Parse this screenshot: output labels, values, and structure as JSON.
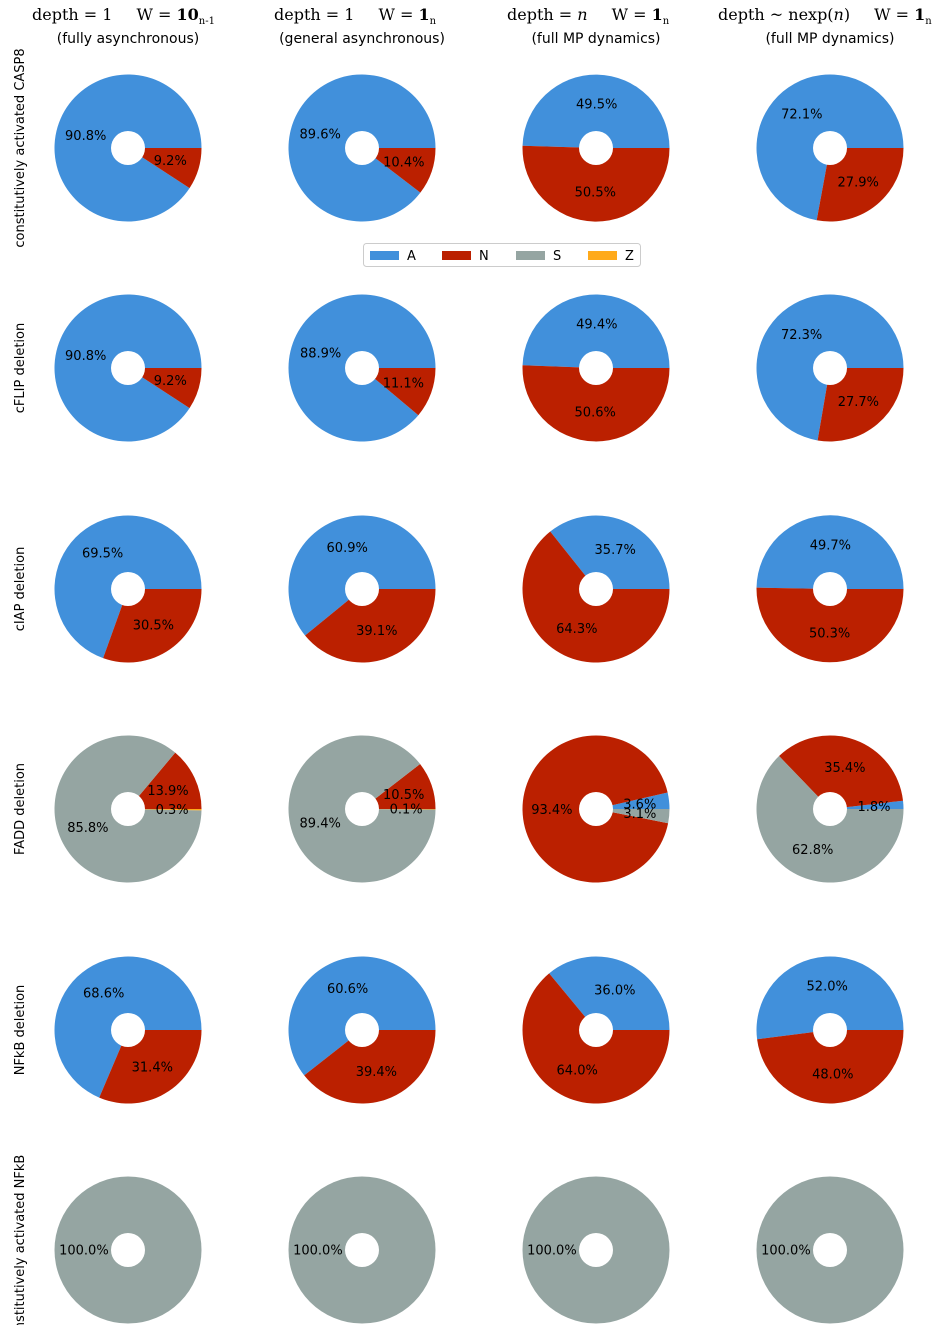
{
  "columns": [
    {
      "header_parts": [
        {
          "text": "depth = 1",
          "style": "normal"
        },
        {
          "text": "W = ",
          "style": "normal"
        },
        {
          "text": "10",
          "style": "bold"
        },
        {
          "text": "n-1",
          "style": "sub"
        }
      ],
      "subtitle": "(fully asynchronous)"
    },
    {
      "header_parts": [
        {
          "text": "depth = 1",
          "style": "normal"
        },
        {
          "text": "W = ",
          "style": "normal"
        },
        {
          "text": "1",
          "style": "bold"
        },
        {
          "text": "n",
          "style": "sub"
        }
      ],
      "subtitle": "(general asynchronous)"
    },
    {
      "header_parts": [
        {
          "text": "depth = ",
          "style": "normal"
        },
        {
          "text": "n",
          "style": "italic"
        },
        {
          "text": "W = ",
          "style": "normal"
        },
        {
          "text": "1",
          "style": "bold"
        },
        {
          "text": "n",
          "style": "sub"
        }
      ],
      "subtitle": "(full MP dynamics)"
    },
    {
      "header_parts": [
        {
          "text": "depth ~ nexp(",
          "style": "normal"
        },
        {
          "text": "n",
          "style": "italic"
        },
        {
          "text": ")",
          "style": "normal"
        },
        {
          "text": "W = ",
          "style": "normal"
        },
        {
          "text": "1",
          "style": "bold"
        },
        {
          "text": "n",
          "style": "sub"
        }
      ],
      "subtitle": "(full MP dynamics)"
    }
  ],
  "legend": [
    {
      "key": "A",
      "label": "A",
      "color": "#4190db"
    },
    {
      "key": "N",
      "label": "N",
      "color": "#bb2000"
    },
    {
      "key": "S",
      "label": "S",
      "color": "#95a5a2"
    },
    {
      "key": "Z",
      "label": "Z",
      "color": "#ffaa1b"
    }
  ],
  "chart_data": {
    "type": "pie",
    "style": "donut, counter-clockwise from 0 degrees, order A N S Z",
    "categories": [
      "A",
      "N",
      "S",
      "Z"
    ],
    "rows": [
      {
        "label": "constitutively activated CASP8",
        "pies": [
          {
            "values": {
              "A": 90.8,
              "N": 9.2,
              "S": 0,
              "Z": 0
            },
            "labels": {
              "A": "90.8%",
              "N": "9.2%"
            }
          },
          {
            "values": {
              "A": 89.6,
              "N": 10.4,
              "S": 0,
              "Z": 0
            },
            "labels": {
              "A": "89.6%",
              "N": "10.4%"
            }
          },
          {
            "values": {
              "A": 49.5,
              "N": 50.5,
              "S": 0,
              "Z": 0
            },
            "labels": {
              "A": "49.5%",
              "N": "50.5%"
            }
          },
          {
            "values": {
              "A": 72.1,
              "N": 27.9,
              "S": 0,
              "Z": 0
            },
            "labels": {
              "A": "72.1%",
              "N": "27.9%"
            }
          }
        ]
      },
      {
        "label": "cFLIP deletion",
        "pies": [
          {
            "values": {
              "A": 90.8,
              "N": 9.2,
              "S": 0,
              "Z": 0
            },
            "labels": {
              "A": "90.8%",
              "N": "9.2%"
            }
          },
          {
            "values": {
              "A": 88.9,
              "N": 11.1,
              "S": 0,
              "Z": 0
            },
            "labels": {
              "A": "88.9%",
              "N": "11.1%"
            }
          },
          {
            "values": {
              "A": 49.4,
              "N": 50.6,
              "S": 0,
              "Z": 0
            },
            "labels": {
              "A": "49.4%",
              "N": "50.6%"
            }
          },
          {
            "values": {
              "A": 72.3,
              "N": 27.7,
              "S": 0,
              "Z": 0
            },
            "labels": {
              "A": "72.3%",
              "N": "27.7%"
            }
          }
        ]
      },
      {
        "label": "cIAP deletion",
        "pies": [
          {
            "values": {
              "A": 69.5,
              "N": 30.5,
              "S": 0,
              "Z": 0
            },
            "labels": {
              "A": "69.5%",
              "N": "30.5%"
            }
          },
          {
            "values": {
              "A": 60.9,
              "N": 39.1,
              "S": 0,
              "Z": 0
            },
            "labels": {
              "A": "60.9%",
              "N": "39.1%"
            }
          },
          {
            "values": {
              "A": 35.7,
              "N": 64.3,
              "S": 0,
              "Z": 0
            },
            "labels": {
              "A": "35.7%",
              "N": "64.3%"
            }
          },
          {
            "values": {
              "A": 49.7,
              "N": 50.3,
              "S": 0,
              "Z": 0
            },
            "labels": {
              "A": "49.7%",
              "N": "50.3%"
            }
          }
        ]
      },
      {
        "label": "FADD deletion",
        "pies": [
          {
            "values": {
              "A": 0,
              "N": 13.9,
              "S": 85.8,
              "Z": 0.3
            },
            "labels": {
              "N": "13.9%",
              "S": "85.8%",
              "Z": "0.3%"
            }
          },
          {
            "values": {
              "A": 0,
              "N": 10.5,
              "S": 89.4,
              "Z": 0.1
            },
            "labels": {
              "N": "10.5%",
              "S": "89.4%",
              "Z": "0.1%"
            }
          },
          {
            "values": {
              "A": 3.6,
              "N": 93.4,
              "S": 3.1,
              "Z": 0
            },
            "labels": {
              "A": "3.6%",
              "N": "93.4%",
              "S": "3.1%"
            }
          },
          {
            "values": {
              "A": 1.8,
              "N": 35.4,
              "S": 62.8,
              "Z": 0
            },
            "labels": {
              "A": "1.8%",
              "N": "35.4%",
              "S": "62.8%"
            }
          }
        ]
      },
      {
        "label": "NFkB deletion",
        "pies": [
          {
            "values": {
              "A": 68.6,
              "N": 31.4,
              "S": 0,
              "Z": 0
            },
            "labels": {
              "A": "68.6%",
              "N": "31.4%"
            }
          },
          {
            "values": {
              "A": 60.6,
              "N": 39.4,
              "S": 0,
              "Z": 0
            },
            "labels": {
              "A": "60.6%",
              "N": "39.4%"
            }
          },
          {
            "values": {
              "A": 36.0,
              "N": 64.0,
              "S": 0,
              "Z": 0
            },
            "labels": {
              "A": "36.0%",
              "N": "64.0%"
            }
          },
          {
            "values": {
              "A": 52.0,
              "N": 48.0,
              "S": 0,
              "Z": 0
            },
            "labels": {
              "A": "52.0%",
              "N": "48.0%"
            }
          }
        ]
      },
      {
        "label": "constitutively activated NFkB",
        "pies": [
          {
            "values": {
              "A": 0,
              "N": 0,
              "S": 100,
              "Z": 0
            },
            "labels": {
              "S": "100.0%"
            }
          },
          {
            "values": {
              "A": 0,
              "N": 0,
              "S": 100,
              "Z": 0
            },
            "labels": {
              "S": "100.0%"
            }
          },
          {
            "values": {
              "A": 0,
              "N": 0,
              "S": 100,
              "Z": 0
            },
            "labels": {
              "S": "100.0%"
            }
          },
          {
            "values": {
              "A": 0,
              "N": 0,
              "S": 100,
              "Z": 0
            },
            "labels": {
              "S": "100.0%"
            }
          }
        ]
      }
    ]
  }
}
